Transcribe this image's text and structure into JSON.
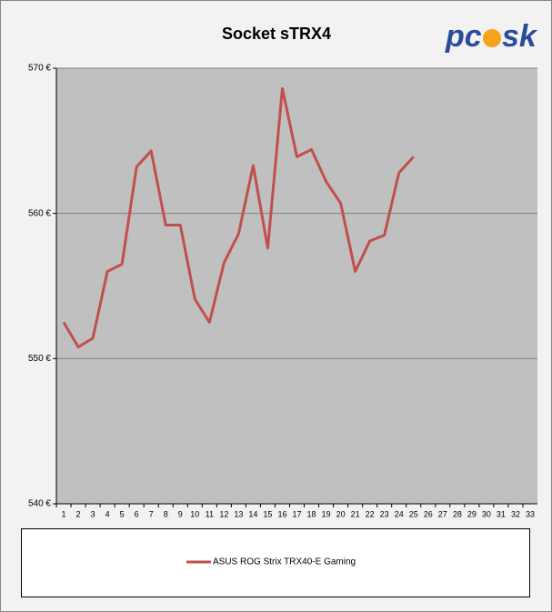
{
  "chart_data": {
    "type": "line",
    "title": "Socket sTRX4",
    "logo": [
      "pc",
      "sk"
    ],
    "categories": [
      "1",
      "2",
      "3",
      "4",
      "5",
      "6",
      "7",
      "8",
      "9",
      "10",
      "11",
      "12",
      "13",
      "14",
      "15",
      "16",
      "17",
      "18",
      "19",
      "20",
      "21",
      "22",
      "23",
      "24",
      "25",
      "26",
      "27",
      "28",
      "29",
      "30",
      "31",
      "32",
      "33"
    ],
    "series": [
      {
        "name": "ASUS ROG Strix TRX40-E Gaming",
        "color": "#c0504d",
        "values": [
          552.5,
          550.8,
          551.4,
          556.0,
          556.5,
          563.2,
          564.3,
          559.2,
          559.2,
          554.1,
          552.5,
          556.6,
          558.6,
          563.3,
          557.6,
          568.6,
          563.9,
          564.4,
          562.2,
          560.7,
          556.0,
          558.1,
          558.5,
          562.8,
          563.9,
          null,
          null,
          null,
          null,
          null,
          null,
          null,
          null
        ]
      }
    ],
    "ylim": [
      540,
      570
    ],
    "yticks": [
      {
        "value": 540,
        "label": "540 €"
      },
      {
        "value": 550,
        "label": "550 €"
      },
      {
        "value": 560,
        "label": "560 €"
      },
      {
        "value": 570,
        "label": "570 €"
      }
    ],
    "grid": true
  }
}
